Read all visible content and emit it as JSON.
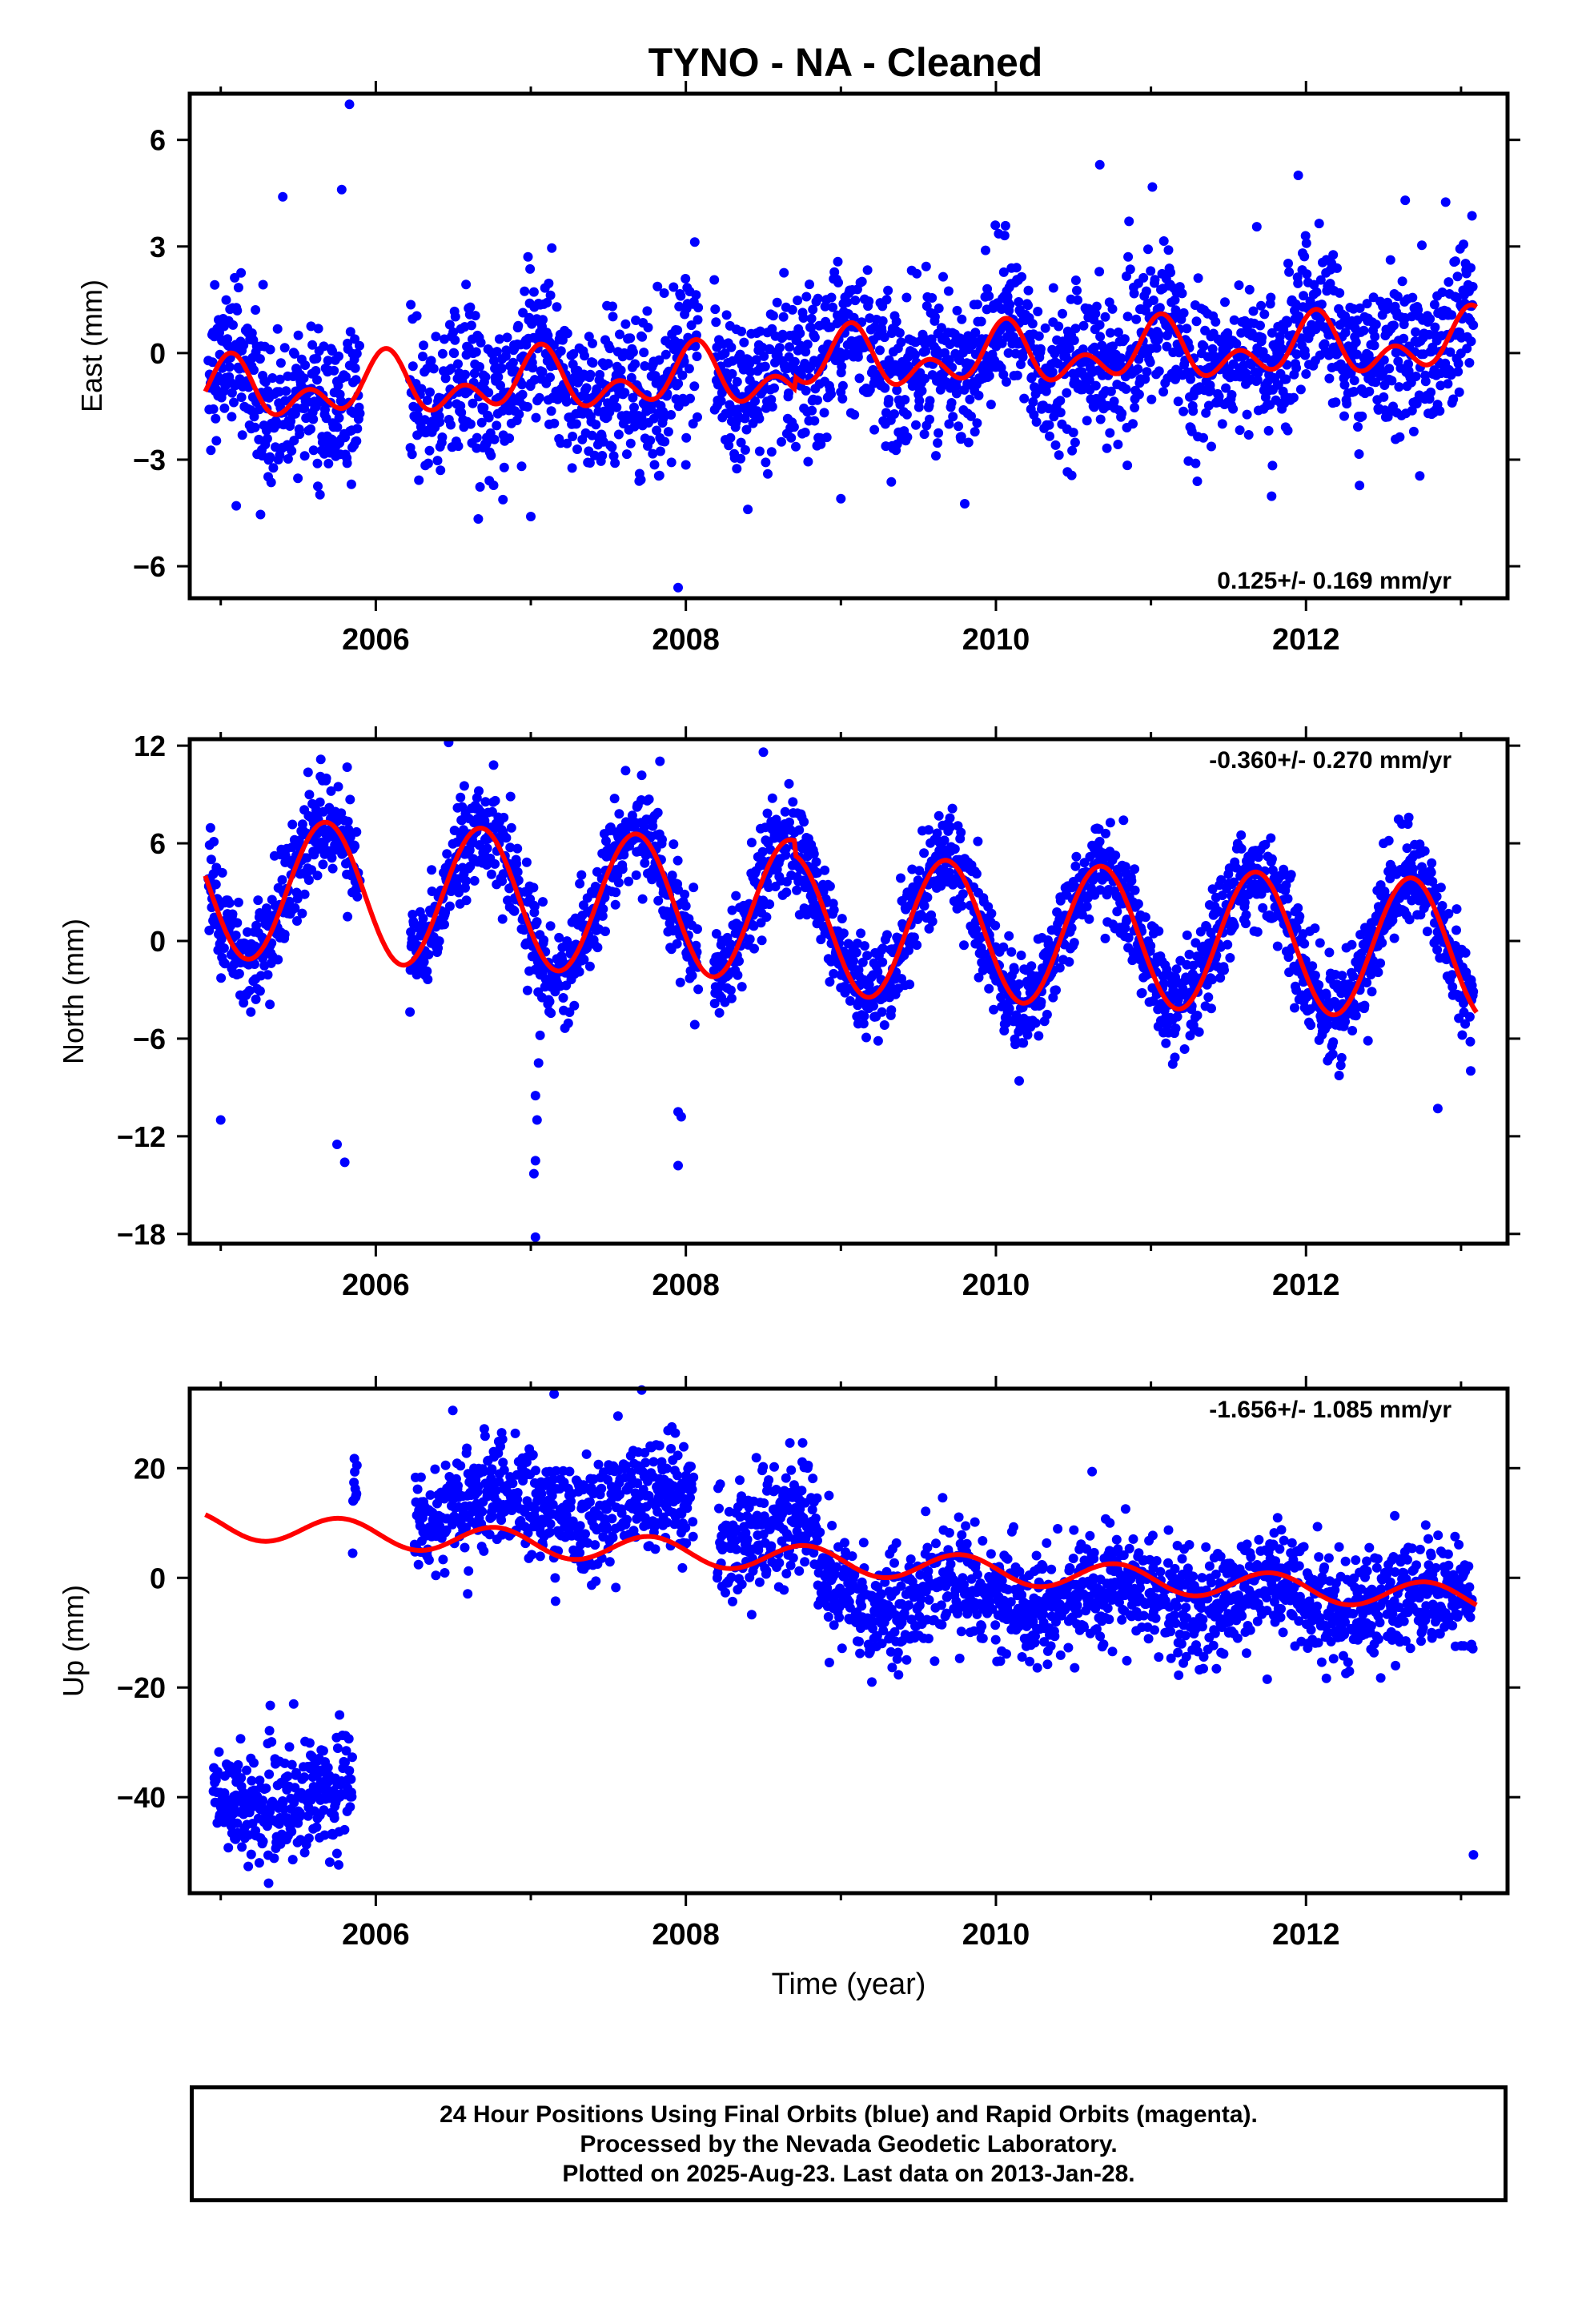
{
  "title": "TYNO  - NA - Cleaned",
  "colors": {
    "points": "#0000ff",
    "fit": "#ff0000",
    "axes": "#000000"
  },
  "footer": {
    "line1": "24 Hour Positions Using Final Orbits (blue) and Rapid Orbits (magenta).",
    "line2": "Processed by the Nevada Geodetic Laboratory.",
    "line3": "Plotted on 2025-Aug-23. Last data on 2013-Jan-28."
  },
  "chart_data": [
    {
      "type": "scatter",
      "component": "east",
      "ylabel": "East (mm)",
      "xlabel": "",
      "xlim": [
        2004.8,
        2013.3
      ],
      "ylim": [
        -6.9,
        7.3
      ],
      "xticks": [
        2006,
        2008,
        2010,
        2012
      ],
      "xtick_labels": [
        "2006",
        "2008",
        "2010",
        "2012"
      ],
      "yticks": [
        -6,
        -3,
        0,
        3,
        6
      ],
      "ytick_labels": [
        "−6",
        "−3",
        "0",
        "3",
        "6"
      ],
      "rate_label": "0.125+/- 0.169 mm/yr",
      "rate_position": "bottom-right",
      "fit": {
        "base": -0.6,
        "trend": 0.125,
        "annual_amp": 0.55,
        "annual_phase": 1.25,
        "semi_amp": 0.55,
        "semi_phase": 0.7,
        "steps": [
          {
            "at": 2008.7,
            "offset": 0.35
          }
        ]
      },
      "noise": 1.05,
      "outliers": [
        [
          2005.83,
          7.0
        ],
        [
          2007.95,
          -6.6
        ],
        [
          2005.4,
          4.4
        ],
        [
          2010.67,
          5.3
        ],
        [
          2011.95,
          5.0
        ],
        [
          2007.0,
          -4.6
        ],
        [
          2005.1,
          -4.3
        ],
        [
          2008.4,
          -4.4
        ],
        [
          2009.0,
          -4.1
        ],
        [
          2005.78,
          4.6
        ],
        [
          2012.64,
          4.3
        ]
      ]
    },
    {
      "type": "scatter",
      "component": "north",
      "ylabel": "North (mm)",
      "xlabel": "",
      "xlim": [
        2004.8,
        2013.3
      ],
      "ylim": [
        -18.6,
        12.4
      ],
      "xticks": [
        2006,
        2008,
        2010,
        2012
      ],
      "xtick_labels": [
        "2006",
        "2008",
        "2010",
        "2012"
      ],
      "yticks": [
        -18,
        -12,
        -6,
        0,
        6,
        12
      ],
      "ytick_labels": [
        "−18",
        "−12",
        "−6",
        "0",
        "6",
        "12"
      ],
      "rate_label": "-0.360+/- 0.270 mm/yr",
      "rate_position": "top-right",
      "fit": {
        "base": 1.8,
        "trend": -0.36,
        "annual_amp": 4.3,
        "annual_phase": 3.6,
        "semi_amp": 0.0,
        "semi_phase": 0.0,
        "steps": [
          {
            "at": 2008.7,
            "offset": -0.9
          }
        ]
      },
      "noise": 1.5,
      "outliers": [
        [
          2007.03,
          -18.2
        ],
        [
          2007.02,
          -14.3
        ],
        [
          2007.03,
          -13.5
        ],
        [
          2007.04,
          -11.0
        ],
        [
          2007.03,
          -9.5
        ],
        [
          2007.05,
          -7.5
        ],
        [
          2007.06,
          -5.8
        ],
        [
          2007.95,
          -13.8
        ],
        [
          2007.95,
          -10.5
        ],
        [
          2007.97,
          -10.8
        ],
        [
          2006.47,
          12.2
        ],
        [
          2008.5,
          11.6
        ],
        [
          2005.75,
          -12.5
        ],
        [
          2005.8,
          -13.6
        ],
        [
          2012.85,
          -10.3
        ],
        [
          2010.15,
          -8.6
        ],
        [
          2012.5,
          6.0
        ],
        [
          2005.0,
          -11.0
        ]
      ]
    },
    {
      "type": "scatter",
      "component": "up",
      "ylabel": "Up (mm)",
      "xlabel": "Time (year)",
      "xlim": [
        2004.8,
        2013.3
      ],
      "ylim": [
        -57.5,
        34.5
      ],
      "xticks": [
        2006,
        2008,
        2010,
        2012
      ],
      "xtick_labels": [
        "2006",
        "2008",
        "2010",
        "2012"
      ],
      "yticks": [
        -40,
        -20,
        0,
        20
      ],
      "ytick_labels": [
        "−40",
        "−20",
        "0",
        "20"
      ],
      "rate_label": "-1.656+/- 1.085 mm/yr",
      "rate_position": "top-right",
      "fit": {
        "base": 3.0,
        "trend": -1.656,
        "annual_amp": 2.5,
        "annual_phase": 3.0,
        "semi_amp": 0.0,
        "semi_phase": 0.0,
        "steps": []
      },
      "noise": 5.0,
      "segments": [
        {
          "from": 2004.95,
          "to": 2005.85,
          "level": -40.0
        },
        {
          "from": 2005.8,
          "to": 2005.88,
          "level": 12.0
        },
        {
          "from": 2006.25,
          "to": 2008.05,
          "level": 13.0
        },
        {
          "from": 2008.2,
          "to": 2008.85,
          "level": 9.0
        },
        {
          "from": 2008.85,
          "to": 2013.1,
          "level": -3.0,
          "trend": -0.3
        }
      ],
      "outliers": [
        [
          2007.15,
          33.5
        ],
        [
          2013.08,
          -50.5
        ],
        [
          2009.2,
          -19.0
        ],
        [
          2011.75,
          -18.5
        ]
      ]
    }
  ]
}
